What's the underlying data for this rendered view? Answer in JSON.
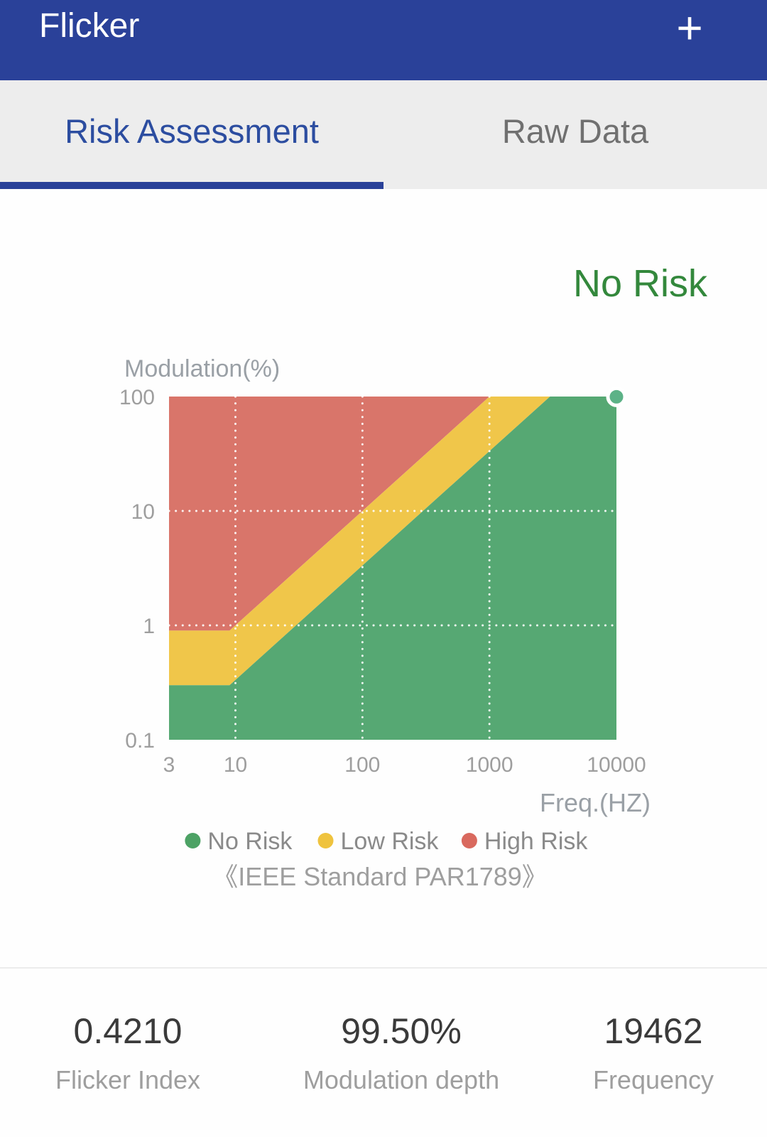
{
  "colors": {
    "header_bg": "#2a4199",
    "tab_active": "#2c4da0",
    "tab_inactive": "#707070",
    "tab_underline": "#2a4199",
    "status_green": "#33883c"
  },
  "header": {
    "title": "Flicker",
    "add_button": "+"
  },
  "tabs": [
    {
      "label": "Risk Assessment",
      "active": true
    },
    {
      "label": "Raw Data",
      "active": false
    }
  ],
  "status": {
    "text": "No Risk"
  },
  "chart_data": {
    "type": "area",
    "x_axis": {
      "label": "Freq.(HZ)",
      "scale": "log",
      "min": 3,
      "max": 10000,
      "ticks": [
        "3",
        "10",
        "100",
        "1000",
        "10000"
      ]
    },
    "y_axis": {
      "label": "Modulation(%)",
      "scale": "log",
      "min": 0.1,
      "max": 100,
      "ticks": [
        "100",
        "10",
        "1",
        "0.1"
      ]
    },
    "gridlines": {
      "vertical": [
        10,
        100,
        1000
      ],
      "horizontal": [
        10,
        1
      ],
      "style": "dotted",
      "color": "#ffffff"
    },
    "regions": [
      {
        "name": "High Risk",
        "color": "#d9756a",
        "points": [
          [
            3,
            100
          ],
          [
            1000,
            100
          ],
          [
            9,
            0.9
          ],
          [
            3,
            0.9
          ]
        ]
      },
      {
        "name": "Low Risk",
        "color": "#f0c64a",
        "points": [
          [
            3,
            0.9
          ],
          [
            9,
            0.9
          ],
          [
            1000,
            100
          ],
          [
            3000,
            100
          ],
          [
            9,
            0.3
          ],
          [
            3,
            0.3
          ]
        ]
      },
      {
        "name": "No Risk",
        "color": "#56a873",
        "points": [
          [
            3,
            0.3
          ],
          [
            9,
            0.3
          ],
          [
            3000,
            100
          ],
          [
            10000,
            100
          ],
          [
            10000,
            0.1
          ],
          [
            3,
            0.1
          ]
        ]
      }
    ],
    "point": {
      "frequency": 19462,
      "modulation_percent": 99.5,
      "color": "#5cb287"
    },
    "legend": [
      {
        "label": "No Risk",
        "color": "#4da265"
      },
      {
        "label": "Low Risk",
        "color": "#efc33e"
      },
      {
        "label": "High Risk",
        "color": "#d9695e"
      }
    ],
    "caption": "《IEEE Standard PAR1789》"
  },
  "stats": [
    {
      "value": "0.4210",
      "label": "Flicker Index"
    },
    {
      "value": "99.50%",
      "label": "Modulation depth"
    },
    {
      "value": "19462",
      "label": "Frequency"
    }
  ]
}
